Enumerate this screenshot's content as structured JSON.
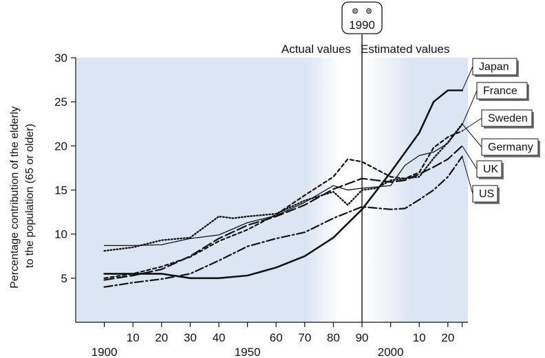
{
  "chart_data": {
    "type": "line",
    "title": "",
    "xlabel": "",
    "ylabel": "Percentage contribution of the elderly to the population (65 or older)",
    "ylabel_lines": [
      "Percentage contribution of the elderly",
      "to the population (65 or older)"
    ],
    "xlim": [
      1890,
      2027
    ],
    "ylim": [
      0,
      30
    ],
    "y_ticks": [
      5,
      10,
      15,
      20,
      25,
      30
    ],
    "x_ticks_upper": [
      {
        "x": 1910,
        "label": "10"
      },
      {
        "x": 1920,
        "label": "20"
      },
      {
        "x": 1930,
        "label": "30"
      },
      {
        "x": 1940,
        "label": "40"
      },
      {
        "x": 1960,
        "label": "60"
      },
      {
        "x": 1970,
        "label": "70"
      },
      {
        "x": 1980,
        "label": "80"
      },
      {
        "x": 1990,
        "label": "90"
      },
      {
        "x": 2010,
        "label": "10"
      },
      {
        "x": 2020,
        "label": "20"
      }
    ],
    "x_ticks_lower": [
      {
        "x": 1900,
        "label": "1900"
      },
      {
        "x": 1950,
        "label": "1950"
      },
      {
        "x": 2000,
        "label": "2000"
      }
    ],
    "minor_tick_x": [
      2025
    ],
    "divider": {
      "x": 1990,
      "label": "1990"
    },
    "annotations": {
      "left": "Actual values",
      "right": "Estimated values"
    },
    "grid": false,
    "legend_placement": "right (callout labels)",
    "series": [
      {
        "name": "Japan",
        "style": "solid-bold",
        "x": [
          1900,
          1920,
          1930,
          1940,
          1950,
          1960,
          1970,
          1980,
          1990,
          2000,
          2010,
          2015,
          2020,
          2025
        ],
        "y": [
          5.5,
          5.5,
          5.0,
          5.0,
          5.3,
          6.2,
          7.5,
          9.6,
          12.8,
          17.0,
          21.5,
          25.0,
          26.3,
          26.3
        ]
      },
      {
        "name": "France",
        "style": "solid-thin",
        "x": [
          1900,
          1910,
          1920,
          1930,
          1940,
          1950,
          1960,
          1970,
          1980,
          1985,
          1990,
          2000,
          2005,
          2010,
          2015,
          2020,
          2025
        ],
        "y": [
          8.7,
          8.7,
          8.8,
          9.5,
          9.9,
          11.3,
          12.1,
          13.6,
          15.5,
          15.0,
          15.2,
          15.5,
          17.8,
          18.9,
          19.3,
          20.3,
          22.4
        ]
      },
      {
        "name": "Sweden",
        "style": "short-dash",
        "x": [
          1900,
          1910,
          1920,
          1930,
          1940,
          1950,
          1960,
          1970,
          1980,
          1985,
          1990,
          2000,
          2005,
          2010,
          2015,
          2020,
          2025
        ],
        "y": [
          5.0,
          5.5,
          6.3,
          7.4,
          9.2,
          10.5,
          12.2,
          14.4,
          16.5,
          18.5,
          18.2,
          16.5,
          16.3,
          17.0,
          19.8,
          21.0,
          21.7
        ]
      },
      {
        "name": "Germany",
        "style": "dotted",
        "x": [
          1900,
          1910,
          1920,
          1930,
          1940,
          1945,
          1950,
          1960,
          1970,
          1980,
          1985,
          1990,
          1995,
          2000,
          2010,
          2015,
          2020,
          2025
        ],
        "y": [
          8.1,
          8.5,
          9.3,
          9.6,
          12.0,
          11.8,
          12.0,
          12.3,
          13.8,
          14.8,
          13.3,
          15.0,
          15.2,
          16.1,
          16.5,
          18.6,
          20.4,
          22.5
        ]
      },
      {
        "name": "UK",
        "style": "long-dash",
        "x": [
          1900,
          1910,
          1920,
          1930,
          1940,
          1950,
          1960,
          1970,
          1980,
          1990,
          2000,
          2005,
          2010,
          2015,
          2020,
          2025
        ],
        "y": [
          4.8,
          5.3,
          6.0,
          7.5,
          9.5,
          11.0,
          12.0,
          13.3,
          15.1,
          16.3,
          15.9,
          16.1,
          16.8,
          17.6,
          18.5,
          20.0
        ]
      },
      {
        "name": "US",
        "style": "dash-dot",
        "x": [
          1900,
          1910,
          1920,
          1930,
          1940,
          1950,
          1960,
          1970,
          1980,
          1990,
          2000,
          2005,
          2010,
          2015,
          2020,
          2025
        ],
        "y": [
          4.0,
          4.5,
          4.9,
          5.5,
          7.0,
          8.6,
          9.5,
          10.2,
          11.8,
          13.1,
          12.8,
          12.9,
          13.9,
          15.0,
          16.5,
          18.8
        ]
      }
    ]
  }
}
